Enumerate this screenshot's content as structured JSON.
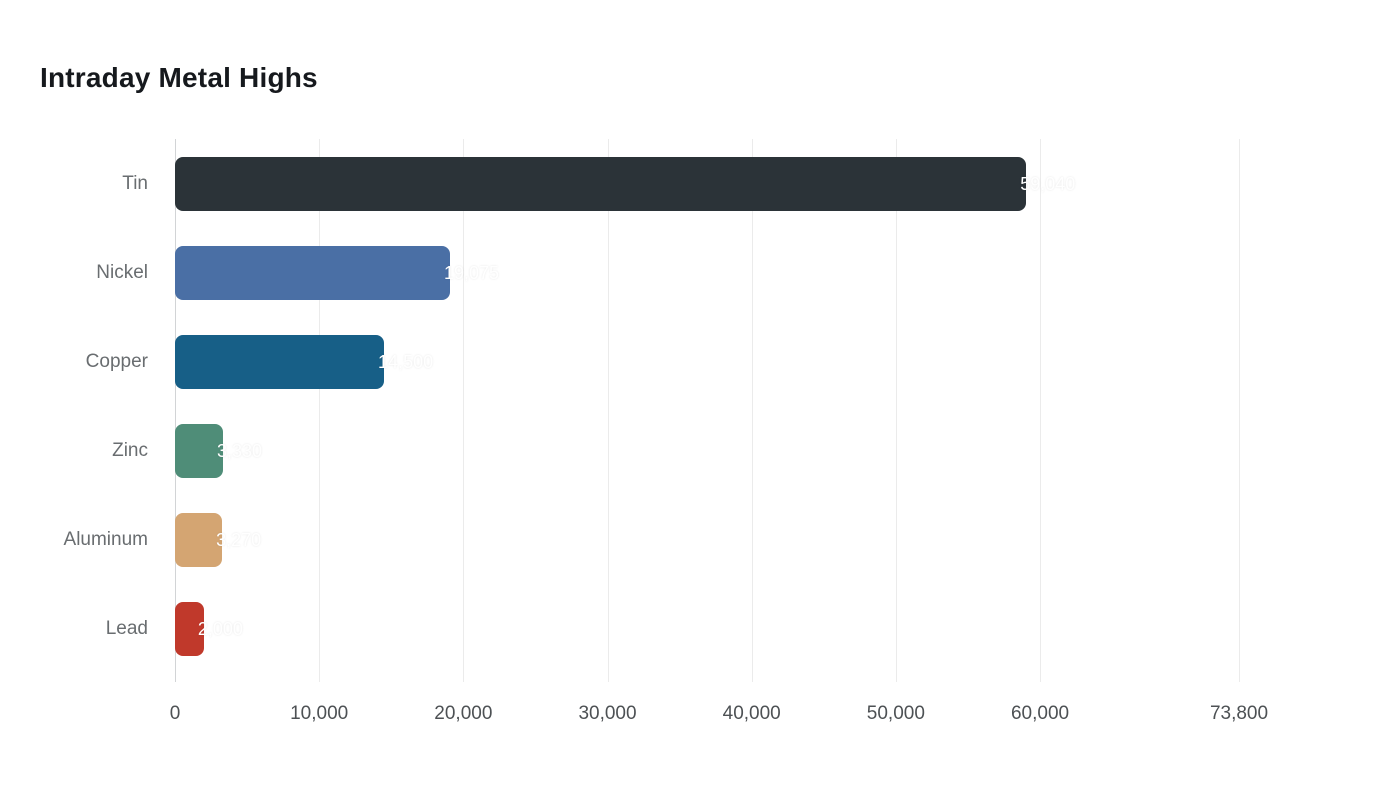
{
  "chart_data": {
    "type": "bar",
    "orientation": "horizontal",
    "title": "Intraday Metal Highs",
    "categories": [
      "Tin",
      "Nickel",
      "Copper",
      "Zinc",
      "Aluminum",
      "Lead"
    ],
    "values": [
      59040,
      19075,
      14500,
      3330,
      3270,
      2000
    ],
    "value_labels": [
      "59,040",
      "19,075",
      "14,500",
      "3,330",
      "3,270",
      "2,000"
    ],
    "bar_colors": [
      "#2b3338",
      "#4a6fa5",
      "#175f87",
      "#4f8d78",
      "#d4a572",
      "#c0392b"
    ],
    "xlim": [
      0,
      73800
    ],
    "x_ticks": [
      0,
      10000,
      20000,
      30000,
      40000,
      50000,
      60000,
      73800
    ],
    "x_tick_labels": [
      "0",
      "10,000",
      "20,000",
      "30,000",
      "40,000",
      "50,000",
      "60,000",
      "73,800"
    ],
    "xlabel": "",
    "ylabel": "",
    "grid": "vertical-only",
    "legend": "none",
    "background": "#ffffff"
  }
}
